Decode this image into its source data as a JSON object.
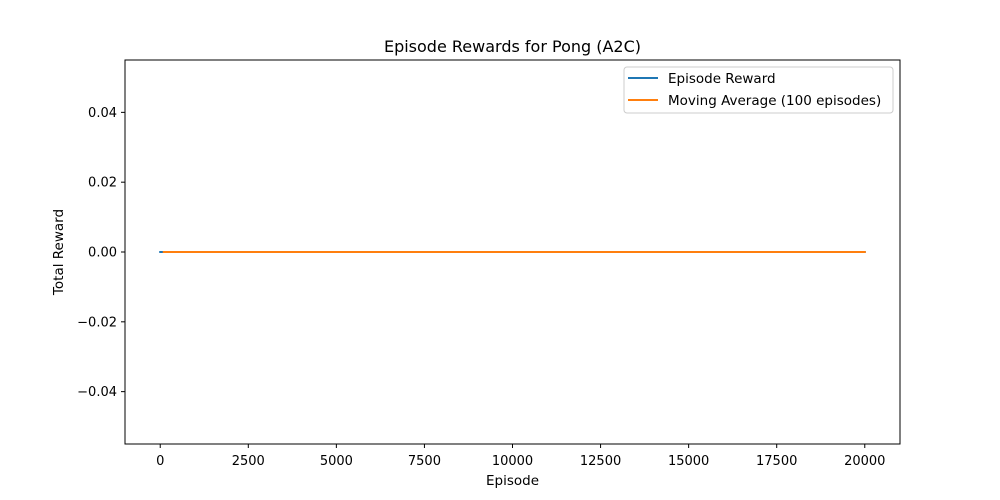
{
  "chart_data": {
    "type": "line",
    "title": "Episode Rewards for Pong (A2C)",
    "xlabel": "Episode",
    "ylabel": "Total Reward",
    "xlim": [
      -1000,
      21000
    ],
    "ylim": [
      -0.055,
      0.055
    ],
    "x_ticks": [
      0,
      2500,
      5000,
      7500,
      10000,
      12500,
      15000,
      17500,
      20000
    ],
    "x_tick_labels": [
      "0",
      "2500",
      "5000",
      "7500",
      "10000",
      "12500",
      "15000",
      "17500",
      "20000"
    ],
    "y_ticks": [
      -0.04,
      -0.02,
      0.0,
      0.02,
      0.04
    ],
    "y_tick_labels": [
      "−0.04",
      "−0.02",
      "0.00",
      "0.02",
      "0.04"
    ],
    "grid": false,
    "legend_position": "top-right",
    "series": [
      {
        "name": "Episode Reward",
        "color": "#1f77b4",
        "x_start": 0,
        "x_end": 20000,
        "value": 0.0
      },
      {
        "name": "Moving Average (100 episodes)",
        "color": "#ff7f0e",
        "x_start": 100,
        "x_end": 20000,
        "value": 0.0
      }
    ]
  }
}
